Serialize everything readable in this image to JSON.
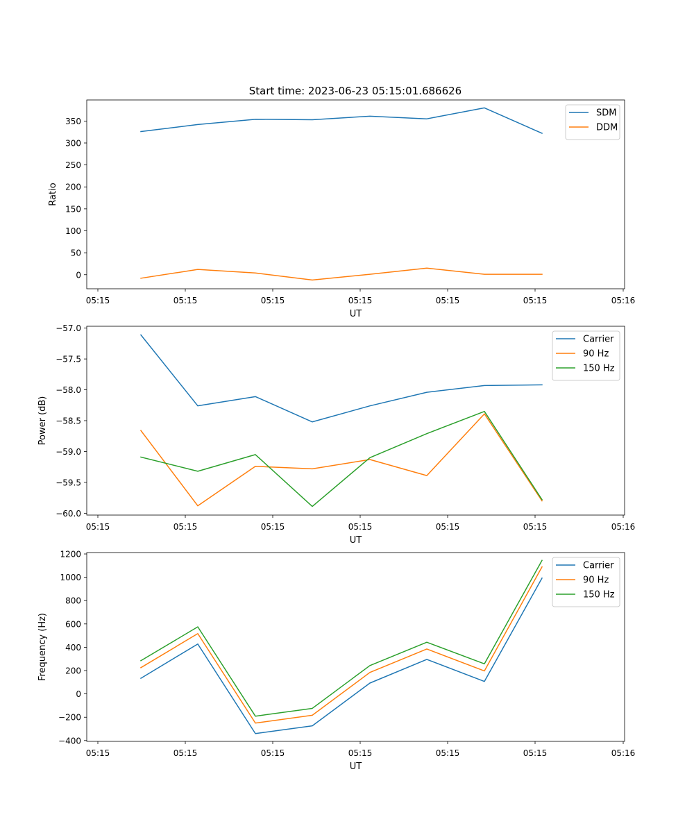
{
  "figure_title": "Start time: 2023-06-23 05:15:01.686626",
  "chart_data": [
    {
      "type": "line",
      "xlabel": "UT",
      "ylabel": "Ratio",
      "x_tick_labels": [
        "05:15",
        "05:15",
        "05:15",
        "05:15",
        "05:15",
        "05:15",
        "05:16"
      ],
      "ylim": [
        -32,
        398
      ],
      "y_ticks": [
        0,
        50,
        100,
        150,
        200,
        250,
        300,
        350
      ],
      "legend_position": "upper right",
      "series": [
        {
          "name": "SDM",
          "color": "#1f77b4",
          "values": [
            326,
            342,
            354,
            353,
            361,
            355,
            380,
            322
          ]
        },
        {
          "name": "DDM",
          "color": "#ff7f0e",
          "values": [
            -8,
            12,
            4,
            -12,
            1,
            15,
            1,
            1
          ]
        }
      ]
    },
    {
      "type": "line",
      "xlabel": "UT",
      "ylabel": "Power (dB)",
      "x_tick_labels": [
        "05:15",
        "05:15",
        "05:15",
        "05:15",
        "05:15",
        "05:15",
        "05:16"
      ],
      "ylim": [
        -60.03,
        -56.97
      ],
      "y_ticks": [
        -60.0,
        -59.5,
        -59.0,
        -58.5,
        -58.0,
        -57.5,
        -57.0
      ],
      "y_tick_labels": [
        "−60.0",
        "−59.5",
        "−59.0",
        "−58.5",
        "−58.0",
        "−57.5",
        "−57.0"
      ],
      "legend_position": "upper right",
      "series": [
        {
          "name": "Carrier",
          "color": "#1f77b4",
          "values": [
            -57.11,
            -58.26,
            -58.11,
            -58.52,
            -58.26,
            -58.04,
            -57.93,
            -57.92
          ]
        },
        {
          "name": "90 Hz",
          "color": "#ff7f0e",
          "values": [
            -58.66,
            -59.88,
            -59.24,
            -59.28,
            -59.13,
            -59.39,
            -58.39,
            -59.8
          ]
        },
        {
          "name": "150 Hz",
          "color": "#2ca02c",
          "values": [
            -59.09,
            -59.32,
            -59.05,
            -59.89,
            -59.1,
            -58.71,
            -58.35,
            -59.78
          ]
        }
      ]
    },
    {
      "type": "line",
      "xlabel": "UT",
      "ylabel": "Frequency (Hz)",
      "x_tick_labels": [
        "05:15",
        "05:15",
        "05:15",
        "05:15",
        "05:15",
        "05:15",
        "05:16"
      ],
      "ylim": [
        -407,
        1212
      ],
      "y_ticks": [
        -400,
        -200,
        0,
        200,
        400,
        600,
        800,
        1000,
        1200
      ],
      "y_tick_labels": [
        "−400",
        "−200",
        "0",
        "200",
        "400",
        "600",
        "800",
        "1000",
        "1200"
      ],
      "legend_position": "upper right",
      "series": [
        {
          "name": "Carrier",
          "color": "#1f77b4",
          "values": [
            134,
            428,
            -340,
            -274,
            93,
            296,
            107,
            993
          ]
        },
        {
          "name": "90 Hz",
          "color": "#ff7f0e",
          "values": [
            225,
            517,
            -250,
            -183,
            184,
            385,
            197,
            1089
          ]
        },
        {
          "name": "150 Hz",
          "color": "#2ca02c",
          "values": [
            285,
            575,
            -191,
            -124,
            243,
            443,
            258,
            1145
          ]
        }
      ]
    }
  ]
}
